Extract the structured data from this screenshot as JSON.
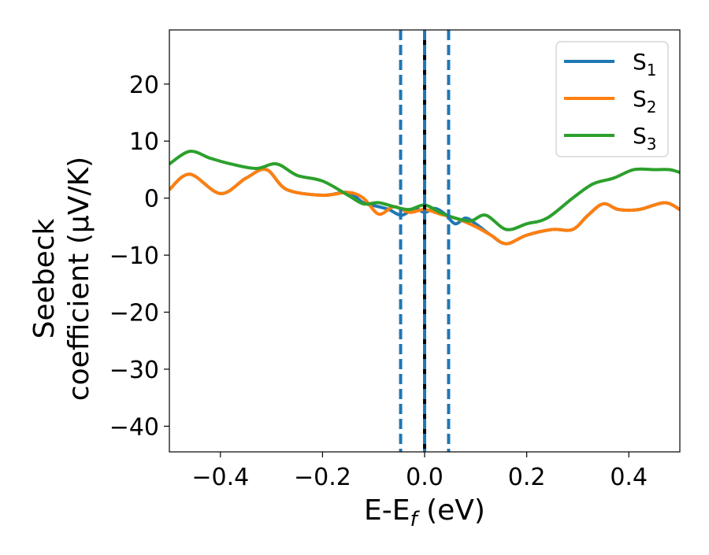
{
  "chart_data": {
    "type": "line",
    "title": "",
    "xlabel": "E-E_f (eV)",
    "ylabel": "Seebeck  coefficient  (μV/K)",
    "ylabel_lines": [
      "Seebeck",
      "coefficient  (μV/K)"
    ],
    "xlabel_parts": {
      "main": "E-E",
      "sub": "f",
      "unit": " (eV)"
    },
    "xlim": [
      -0.5,
      0.5
    ],
    "ylim": [
      -44.5,
      29.5
    ],
    "x_ticks": [
      -0.4,
      -0.2,
      0.0,
      0.2,
      0.4
    ],
    "x_tick_labels": [
      "−0.4",
      "−0.2",
      "0.0",
      "0.2",
      "0.4"
    ],
    "y_ticks": [
      -40,
      -30,
      -20,
      -10,
      0,
      10,
      20
    ],
    "y_tick_labels": [
      "−40",
      "−30",
      "−20",
      "−10",
      "0",
      "10",
      "20"
    ],
    "grid": false,
    "legend_position": "top-right",
    "series": [
      {
        "name": "S_1",
        "legend_main": "S",
        "legend_sub": "1",
        "color": "#1f77b4",
        "x": [
          -0.5,
          -0.46,
          -0.4,
          -0.35,
          -0.31,
          -0.27,
          -0.2,
          -0.15,
          -0.12,
          -0.09,
          -0.07,
          -0.045,
          -0.02,
          0.0,
          0.02,
          0.04,
          0.06,
          0.08,
          0.1,
          0.13,
          0.16,
          0.2,
          0.25,
          0.29,
          0.32,
          0.35,
          0.38,
          0.42,
          0.47,
          0.5
        ],
        "y": [
          1.5,
          4.2,
          0.8,
          3.5,
          5.0,
          1.5,
          0.5,
          1.0,
          -0.8,
          -1.5,
          -2.0,
          -3.0,
          -1.8,
          -2.5,
          -1.8,
          -2.8,
          -4.5,
          -3.5,
          -4.5,
          -6.5,
          -8.0,
          -6.5,
          -5.5,
          -5.5,
          -3.0,
          -1.0,
          -2.0,
          -2.0,
          -0.8,
          -2.0
        ]
      },
      {
        "name": "S_2",
        "legend_main": "S",
        "legend_sub": "2",
        "color": "#ff7f0e",
        "x": [
          -0.5,
          -0.46,
          -0.4,
          -0.35,
          -0.31,
          -0.27,
          -0.2,
          -0.15,
          -0.12,
          -0.09,
          -0.06,
          -0.03,
          0.0,
          0.03,
          0.06,
          0.1,
          0.13,
          0.16,
          0.2,
          0.25,
          0.29,
          0.32,
          0.35,
          0.38,
          0.42,
          0.47,
          0.5
        ],
        "y": [
          1.5,
          4.2,
          0.8,
          3.5,
          5.0,
          1.5,
          0.5,
          1.0,
          0.0,
          -2.8,
          -1.5,
          -2.5,
          -2.0,
          -2.8,
          -3.5,
          -5.0,
          -6.5,
          -8.0,
          -6.5,
          -5.5,
          -5.5,
          -3.0,
          -1.0,
          -2.0,
          -2.0,
          -0.8,
          -2.0
        ]
      },
      {
        "name": "S_3",
        "legend_main": "S",
        "legend_sub": "3",
        "color": "#2ca02c",
        "x": [
          -0.5,
          -0.46,
          -0.42,
          -0.38,
          -0.33,
          -0.29,
          -0.25,
          -0.2,
          -0.15,
          -0.12,
          -0.09,
          -0.06,
          -0.03,
          0.0,
          0.03,
          0.06,
          0.09,
          0.12,
          0.16,
          0.2,
          0.24,
          0.29,
          0.33,
          0.37,
          0.41,
          0.45,
          0.48,
          0.5
        ],
        "y": [
          6.0,
          8.2,
          7.0,
          6.0,
          5.2,
          6.0,
          4.0,
          3.0,
          0.5,
          -1.0,
          -0.8,
          -1.5,
          -2.0,
          -1.2,
          -2.5,
          -3.5,
          -4.0,
          -3.0,
          -5.5,
          -4.5,
          -3.5,
          0.0,
          2.5,
          3.5,
          5.0,
          5.0,
          5.0,
          4.5
        ]
      }
    ],
    "vlines": [
      {
        "x": -0.047,
        "style": "dashed",
        "color": "#1f77b4"
      },
      {
        "x": 0.0,
        "style": "solid",
        "color": "#000000"
      },
      {
        "x": 0.0,
        "style": "dashed",
        "color": "#1f77b4"
      },
      {
        "x": 0.047,
        "style": "dashed",
        "color": "#1f77b4"
      }
    ]
  }
}
